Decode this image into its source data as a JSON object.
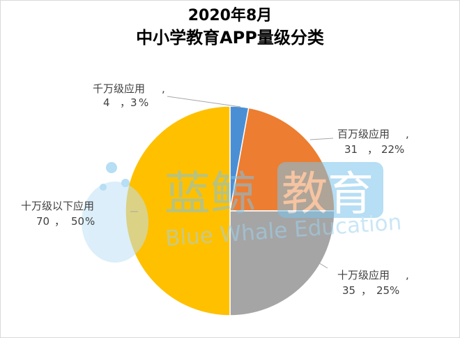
{
  "chart_data": {
    "type": "pie",
    "title_line1": "2020年8月",
    "title_line2": "中小学教育APP量级分类",
    "slices": [
      {
        "label": "千万级应用",
        "value": 4,
        "percent": "3",
        "color": "#4a8fd4"
      },
      {
        "label": "百万级应用",
        "value": 31,
        "percent": "22",
        "color": "#ed7d31"
      },
      {
        "label": "十万级应用",
        "value": 35,
        "percent": "25",
        "color": "#a5a5a5"
      },
      {
        "label": "十万级以下应用",
        "value": 70,
        "percent": "50",
        "color": "#ffc000"
      }
    ],
    "percent_color": "#c00000"
  },
  "watermark": {
    "cn_text": "蓝鲸",
    "cn_boxed": "教育",
    "en_text": "Blue Whale Education",
    "color": "#4aa8e0"
  }
}
